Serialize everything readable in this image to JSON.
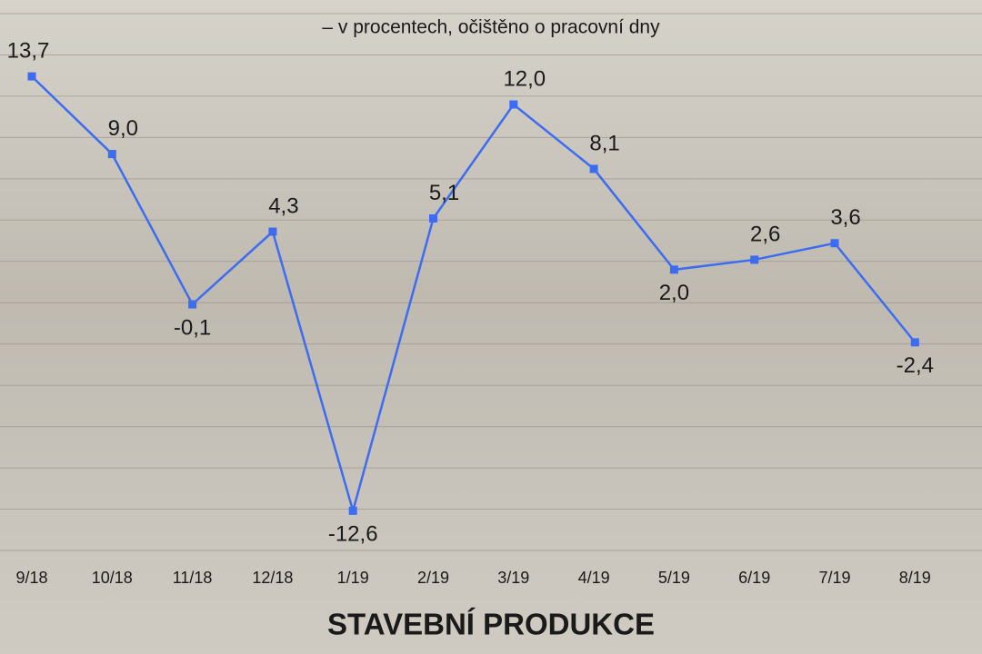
{
  "chart_data": {
    "type": "line",
    "title": "STAVEBNÍ PRODUKCE",
    "subtitle": "– v procentech, očištěno o pracovní dny",
    "categories": [
      "9/18",
      "10/18",
      "11/18",
      "12/18",
      "1/19",
      "2/19",
      "3/19",
      "4/19",
      "5/19",
      "6/19",
      "7/19",
      "8/19"
    ],
    "values": [
      13.7,
      9.0,
      -0.1,
      4.3,
      -12.6,
      5.1,
      12.0,
      8.1,
      2.0,
      2.6,
      3.6,
      -2.4
    ],
    "value_labels": [
      "13,7",
      "9,0",
      "-0,1",
      "4,3",
      "-12,6",
      "5,1",
      "12,0",
      "8,1",
      "2,0",
      "2,6",
      "3,6",
      "-2,4"
    ],
    "color": "#3d6cf2",
    "ylim": [
      -15,
      17.5
    ],
    "yticks": [
      -15,
      -12.5,
      -10,
      -7.5,
      -5,
      -2.5,
      0,
      2.5,
      5,
      7.5,
      10,
      12.5,
      15,
      17.5
    ],
    "grid": true
  }
}
